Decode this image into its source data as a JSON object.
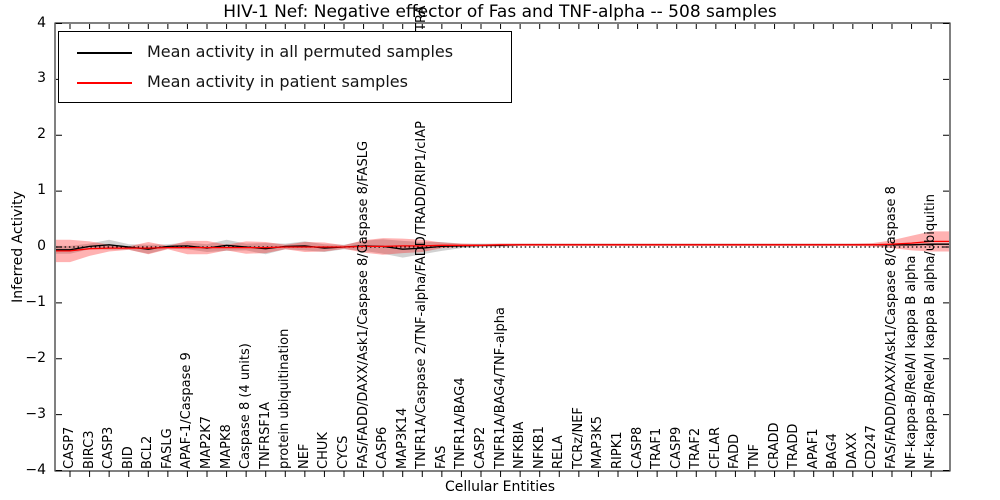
{
  "title": "HIV-1 Nef: Negative effector of Fas and TNF-alpha -- 508 samples",
  "axes": {
    "ylabel": "Inferred Activity",
    "xlabel": "Cellular Entities",
    "ytick_labels": [
      "4",
      "3",
      "2",
      "1",
      "0",
      "−1",
      "−2",
      "−3",
      "−4"
    ],
    "ytick_values": [
      4,
      3,
      2,
      1,
      0,
      -1,
      -2,
      -3,
      -4
    ]
  },
  "legend": {
    "items": [
      {
        "label": "Mean activity in all permuted samples",
        "color": "#000000"
      },
      {
        "label": "Mean activity in patient samples",
        "color": "#ff0000"
      }
    ]
  },
  "overflow_fragment": {
    "text": "TRA"
  },
  "chart_data": {
    "type": "line",
    "title": "HIV-1 Nef: Negative effector of Fas and TNF-alpha -- 508 samples",
    "xlabel": "Cellular Entities",
    "ylabel": "Inferred Activity",
    "ylim": [
      -4,
      4
    ],
    "zero_line": "dotted",
    "legend_position": "upper left",
    "band_style": "mean plus/minus shaded band",
    "categories": [
      "CASP7",
      "BIRC3",
      "CASP3",
      "BID",
      "BCL2",
      "FASLG",
      "APAF-1/Caspase 9",
      "MAP2K7",
      "MAPK8",
      "Caspase 8 (4 units)",
      "TNFRSF1A",
      "protein ubiquitination",
      "NEF",
      "CHUK",
      "CYCS",
      "FAS/FADD/DAXX/Ask1/Caspase 8/Caspase 8/FASLG",
      "CASP6",
      "MAP3K14",
      "TNFR1A/Caspase 2/TNF-alpha/FADD/TRADD/RIP1/cIAP",
      "FAS",
      "TNFR1A/BAG4",
      "CASP2",
      "TNFR1A/BAG4/TNF-alpha",
      "NFKBIA",
      "NFKB1",
      "RELA",
      "TCRz/NEF",
      "MAP3K5",
      "RIPK1",
      "CASP8",
      "TRAF1",
      "CASP9",
      "TRAF2",
      "CFLAR",
      "FADD",
      "TNF",
      "CRADD",
      "TRADD",
      "APAF1",
      "BAG4",
      "DAXX",
      "CD247",
      "FAS/FADD/DAXX/Ask1/Caspase 8/Caspase 8",
      "NF-kappa-B/RelA/I kappa B alpha",
      "NF-kappa-B/RelA/I kappa B alpha/ubiquitin"
    ],
    "series": [
      {
        "name": "Mean activity in all permuted samples",
        "color": "#000000",
        "band_color": "rgba(0,0,0,0.18)",
        "values": [
          -0.05,
          0.01,
          0.04,
          0.0,
          -0.04,
          0.01,
          0.02,
          -0.02,
          0.03,
          0.0,
          -0.03,
          0.01,
          0.02,
          -0.02,
          0.0,
          0.02,
          0.01,
          -0.04,
          -0.02,
          0.01,
          0.02,
          0.03,
          0.03,
          0.04,
          0.04,
          0.04,
          0.04,
          0.04,
          0.04,
          0.04,
          0.04,
          0.04,
          0.04,
          0.04,
          0.04,
          0.04,
          0.04,
          0.04,
          0.04,
          0.04,
          0.04,
          0.04,
          0.04,
          0.04,
          0.05
        ],
        "band": [
          0.07,
          0.05,
          0.09,
          0.05,
          0.08,
          0.04,
          0.06,
          0.07,
          0.1,
          0.06,
          0.1,
          0.05,
          0.08,
          0.07,
          0.04,
          0.09,
          0.13,
          0.15,
          0.11,
          0.08,
          0.04,
          0.03,
          0.03,
          0.02,
          0.02,
          0.02,
          0.02,
          0.02,
          0.02,
          0.02,
          0.02,
          0.02,
          0.02,
          0.02,
          0.02,
          0.02,
          0.02,
          0.02,
          0.02,
          0.02,
          0.02,
          0.02,
          0.02,
          0.02,
          0.02
        ]
      },
      {
        "name": "Mean activity in patient samples",
        "color": "#ff0000",
        "band_color": "rgba(255,0,0,0.30)",
        "values": [
          -0.07,
          -0.03,
          -0.02,
          -0.02,
          -0.02,
          -0.01,
          -0.01,
          -0.01,
          -0.01,
          -0.01,
          -0.01,
          0.0,
          0.0,
          0.0,
          0.0,
          0.01,
          0.01,
          0.02,
          0.02,
          0.03,
          0.03,
          0.03,
          0.04,
          0.04,
          0.04,
          0.04,
          0.04,
          0.04,
          0.04,
          0.04,
          0.04,
          0.04,
          0.04,
          0.04,
          0.04,
          0.04,
          0.04,
          0.04,
          0.04,
          0.04,
          0.04,
          0.04,
          0.05,
          0.07,
          0.1
        ],
        "band": [
          0.2,
          0.13,
          0.06,
          0.03,
          0.11,
          0.03,
          0.12,
          0.12,
          0.05,
          0.11,
          0.1,
          0.04,
          0.09,
          0.08,
          0.03,
          0.11,
          0.15,
          0.13,
          0.11,
          0.05,
          0.03,
          0.02,
          0.02,
          0.02,
          0.02,
          0.02,
          0.02,
          0.02,
          0.02,
          0.02,
          0.02,
          0.02,
          0.02,
          0.02,
          0.02,
          0.02,
          0.02,
          0.02,
          0.02,
          0.02,
          0.02,
          0.03,
          0.07,
          0.13,
          0.18
        ]
      }
    ]
  }
}
